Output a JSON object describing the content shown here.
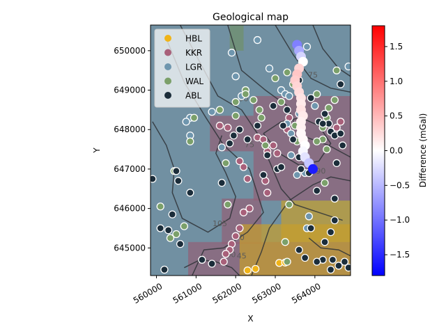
{
  "chart_data": {
    "type": "scatter",
    "title": "Geological map",
    "xlabel": "X",
    "ylabel": "Y",
    "xlim": [
      559850,
      564900
    ],
    "ylim": [
      644300,
      650650
    ],
    "xticks": [
      560000,
      561000,
      562000,
      563000,
      564000
    ],
    "xtick_labels": [
      "560000",
      "561000",
      "562000",
      "563000",
      "564000"
    ],
    "yticks": [
      645000,
      646000,
      647000,
      648000,
      649000,
      650000
    ],
    "ytick_labels": [
      "645000",
      "646000",
      "647000",
      "648000",
      "649000",
      "650000"
    ],
    "grid": false,
    "legend_position": "top-left",
    "legend": [
      {
        "name": "HBL",
        "color": "#f0b418"
      },
      {
        "name": "KKR",
        "color": "#a8607a"
      },
      {
        "name": "LGR",
        "color": "#6f96ae"
      },
      {
        "name": "WAL",
        "color": "#7ba06a"
      },
      {
        "name": "ABL",
        "color": "#1b2d3a"
      }
    ],
    "colorbar": {
      "label": "Difference (mGal)",
      "min": -1.8,
      "max": 1.8,
      "colormap": "bwr",
      "ticks": [
        -1.5,
        -1.0,
        -0.5,
        0.0,
        0.5,
        1.0,
        1.5
      ],
      "tick_labels": [
        "−1.5",
        "−1.0",
        "−0.5",
        "0.0",
        "0.5",
        "1.0",
        "1.5"
      ]
    },
    "contour_labels": [
      {
        "text": "90",
        "x": 562200,
        "y": 648720
      },
      {
        "text": "75",
        "x": 563950,
        "y": 649320
      },
      {
        "text": "75",
        "x": 562350,
        "y": 647550
      },
      {
        "text": "90",
        "x": 564150,
        "y": 646880
      },
      {
        "text": "105",
        "x": 561600,
        "y": 645550
      },
      {
        "text": "90",
        "x": 562100,
        "y": 645200
      },
      {
        "text": "60",
        "x": 561880,
        "y": 644770
      },
      {
        "text": "45",
        "x": 562150,
        "y": 644730
      }
    ],
    "geology_regions": [
      {
        "unit": "LGR",
        "x": [
          559850,
          564900
        ],
        "y": [
          644300,
          650650
        ]
      },
      {
        "unit": "KKR",
        "x": [
          561350,
          562450
        ],
        "y": [
          647450,
          648350
        ]
      },
      {
        "unit": "KKR",
        "x": [
          562450,
          564900
        ],
        "y": [
          646200,
          648850
        ]
      },
      {
        "unit": "KKR",
        "x": [
          561650,
          562650
        ],
        "y": [
          645100,
          646250
        ]
      },
      {
        "unit": "KKR",
        "x": [
          560800,
          564900
        ],
        "y": [
          644300,
          645150
        ]
      },
      {
        "unit": "HBL",
        "x": [
          562100,
          564900
        ],
        "y": [
          644300,
          645600
        ]
      },
      {
        "unit": "HBL",
        "x": [
          563150,
          564900
        ],
        "y": [
          645150,
          646200
        ]
      },
      {
        "unit": "WAL",
        "x": [
          561850,
          562200
        ],
        "y": [
          650000,
          650650
        ]
      }
    ],
    "contours": [
      [
        [
          560250,
          650300
        ],
        [
          560700,
          649200
        ],
        [
          561250,
          648300
        ],
        [
          561700,
          647600
        ],
        [
          562350,
          647000
        ],
        [
          562700,
          645900
        ],
        [
          562300,
          645400
        ],
        [
          561700,
          645000
        ],
        [
          561200,
          644950
        ],
        [
          560900,
          644300
        ]
      ],
      [
        [
          560600,
          650650
        ],
        [
          561100,
          649700
        ],
        [
          561550,
          648850
        ],
        [
          562150,
          648500
        ],
        [
          562550,
          647900
        ],
        [
          562850,
          647200
        ],
        [
          563150,
          646500
        ],
        [
          563500,
          646100
        ],
        [
          564100,
          645900
        ],
        [
          564700,
          645700
        ]
      ],
      [
        [
          561800,
          650650
        ],
        [
          562150,
          649500
        ],
        [
          562750,
          649000
        ],
        [
          563300,
          648600
        ],
        [
          563500,
          648100
        ],
        [
          563800,
          647800
        ],
        [
          564350,
          647600
        ],
        [
          564900,
          647300
        ]
      ],
      [
        [
          563000,
          650650
        ],
        [
          563450,
          649900
        ],
        [
          563900,
          649300
        ],
        [
          564400,
          649050
        ],
        [
          564900,
          648950
        ]
      ],
      [
        [
          563950,
          650650
        ],
        [
          564200,
          650050
        ],
        [
          564600,
          649550
        ],
        [
          564900,
          649350
        ]
      ],
      [
        [
          559900,
          648200
        ],
        [
          560250,
          647600
        ],
        [
          560450,
          647000
        ],
        [
          560400,
          646400
        ],
        [
          560650,
          645750
        ],
        [
          561300,
          645400
        ],
        [
          561850,
          645750
        ],
        [
          562000,
          646300
        ],
        [
          561750,
          646900
        ],
        [
          561500,
          647400
        ],
        [
          561650,
          647850
        ]
      ],
      [
        [
          562400,
          644300
        ],
        [
          562650,
          644900
        ],
        [
          562850,
          645500
        ],
        [
          563350,
          646200
        ],
        [
          563950,
          646600
        ],
        [
          564400,
          646800
        ],
        [
          564900,
          646700
        ]
      ],
      [
        [
          562700,
          647900
        ],
        [
          563100,
          647400
        ],
        [
          563600,
          647100
        ],
        [
          564100,
          647200
        ],
        [
          564400,
          647650
        ],
        [
          564100,
          648100
        ],
        [
          563650,
          648300
        ],
        [
          563150,
          648200
        ],
        [
          562700,
          647900
        ]
      ],
      [
        [
          563850,
          645250
        ],
        [
          564150,
          645000
        ],
        [
          564600,
          644950
        ],
        [
          564900,
          644800
        ]
      ],
      [
        [
          560700,
          644500
        ],
        [
          561100,
          644700
        ],
        [
          561500,
          644650
        ],
        [
          561900,
          644500
        ],
        [
          562100,
          644300
        ]
      ]
    ],
    "gravity_points": [
      {
        "x": 563550,
        "y": 650150,
        "value": -0.9
      },
      {
        "x": 563600,
        "y": 650000,
        "value": -0.6
      },
      {
        "x": 563650,
        "y": 649850,
        "value": -0.3
      },
      {
        "x": 563700,
        "y": 649720,
        "value": 0.0
      },
      {
        "x": 563600,
        "y": 649550,
        "value": 0.3
      },
      {
        "x": 563550,
        "y": 649400,
        "value": 0.4
      },
      {
        "x": 563500,
        "y": 649250,
        "value": 0.35
      },
      {
        "x": 563550,
        "y": 649100,
        "value": 0.3
      },
      {
        "x": 563600,
        "y": 648950,
        "value": 0.25
      },
      {
        "x": 563650,
        "y": 648800,
        "value": 0.2
      },
      {
        "x": 563650,
        "y": 648650,
        "value": 0.15
      },
      {
        "x": 563650,
        "y": 648500,
        "value": 0.2
      },
      {
        "x": 563700,
        "y": 648350,
        "value": 0.15
      },
      {
        "x": 563650,
        "y": 648200,
        "value": 0.1
      },
      {
        "x": 563650,
        "y": 648050,
        "value": 0.1
      },
      {
        "x": 563650,
        "y": 647900,
        "value": 0.05
      },
      {
        "x": 563700,
        "y": 647750,
        "value": 0.05
      },
      {
        "x": 563750,
        "y": 647600,
        "value": 0.0
      },
      {
        "x": 563700,
        "y": 647450,
        "value": -0.05
      },
      {
        "x": 563750,
        "y": 647300,
        "value": -0.2
      },
      {
        "x": 563850,
        "y": 647150,
        "value": -0.4
      },
      {
        "x": 563950,
        "y": 647000,
        "value": -1.6
      }
    ],
    "stations": {
      "HBL": [
        [
          562300,
          644430
        ],
        [
          562500,
          644470
        ],
        [
          563100,
          644620
        ],
        [
          563250,
          644630
        ]
      ],
      "KKR": [
        [
          561600,
          648100
        ],
        [
          561800,
          648050
        ],
        [
          562100,
          647200
        ],
        [
          562200,
          647050
        ],
        [
          562300,
          646750
        ],
        [
          562350,
          646000
        ],
        [
          562200,
          645900
        ],
        [
          562100,
          645500
        ],
        [
          562000,
          645300
        ],
        [
          561900,
          645100
        ],
        [
          561850,
          644950
        ],
        [
          561750,
          644850
        ],
        [
          561700,
          644650
        ],
        [
          562550,
          647800
        ],
        [
          562700,
          647750
        ],
        [
          562800,
          647450
        ],
        [
          562950,
          647600
        ],
        [
          563050,
          647400
        ],
        [
          562750,
          646700
        ],
        [
          562800,
          646400
        ],
        [
          563300,
          648000
        ],
        [
          563350,
          648300
        ],
        [
          564650,
          648200
        ],
        [
          564550,
          648050
        ]
      ],
      "LGR": [
        [
          561900,
          649950
        ],
        [
          562000,
          649350
        ],
        [
          562150,
          648850
        ],
        [
          562550,
          650270
        ],
        [
          562850,
          649550
        ],
        [
          563150,
          649000
        ],
        [
          563250,
          648900
        ],
        [
          563350,
          648850
        ],
        [
          563300,
          648150
        ],
        [
          563400,
          647900
        ],
        [
          563600,
          648400
        ],
        [
          563400,
          647350
        ],
        [
          563550,
          646850
        ],
        [
          563750,
          646900
        ],
        [
          563800,
          645500
        ],
        [
          563850,
          645800
        ],
        [
          563800,
          650100
        ],
        [
          564000,
          648600
        ],
        [
          564850,
          649600
        ],
        [
          560850,
          648300
        ],
        [
          560850,
          647850
        ],
        [
          561400,
          648450
        ],
        [
          561650,
          647550
        ],
        [
          560750,
          648200
        ]
      ],
      "WAL": [
        [
          560100,
          646050
        ],
        [
          560350,
          645250
        ],
        [
          560450,
          646950
        ],
        [
          560500,
          645350
        ],
        [
          560700,
          645550
        ],
        [
          560850,
          647700
        ],
        [
          560950,
          648300
        ],
        [
          561600,
          648500
        ],
        [
          561750,
          647150
        ],
        [
          561800,
          646100
        ],
        [
          562000,
          648350
        ],
        [
          562000,
          648700
        ],
        [
          562250,
          649000
        ],
        [
          562450,
          648750
        ],
        [
          562600,
          648500
        ],
        [
          562650,
          648300
        ],
        [
          562750,
          647600
        ],
        [
          563000,
          649300
        ],
        [
          563150,
          648700
        ],
        [
          563300,
          649450
        ],
        [
          563450,
          649150
        ],
        [
          563500,
          648100
        ],
        [
          563550,
          647700
        ],
        [
          564050,
          648900
        ],
        [
          564200,
          648050
        ],
        [
          564300,
          648300
        ],
        [
          564350,
          648550
        ],
        [
          564500,
          648750
        ],
        [
          564550,
          649500
        ],
        [
          564200,
          647750
        ],
        [
          564250,
          646650
        ],
        [
          563350,
          646100
        ],
        [
          563250,
          645150
        ],
        [
          563300,
          644650
        ],
        [
          562250,
          648900
        ],
        [
          564050,
          647700
        ],
        [
          564300,
          647500
        ]
      ],
      "ABL": [
        [
          559900,
          646750
        ],
        [
          560100,
          645500
        ],
        [
          560200,
          644450
        ],
        [
          560300,
          645450
        ],
        [
          560400,
          645850
        ],
        [
          560500,
          646950
        ],
        [
          560550,
          646700
        ],
        [
          560600,
          645100
        ],
        [
          560850,
          646400
        ],
        [
          561150,
          644700
        ],
        [
          561400,
          644600
        ],
        [
          561650,
          646650
        ],
        [
          561850,
          647650
        ],
        [
          561950,
          647850
        ],
        [
          562100,
          648000
        ],
        [
          562300,
          647750
        ],
        [
          562550,
          648100
        ],
        [
          562700,
          646850
        ],
        [
          562800,
          647350
        ],
        [
          562950,
          648600
        ],
        [
          563050,
          647000
        ],
        [
          563150,
          647050
        ],
        [
          563200,
          648100
        ],
        [
          563300,
          648500
        ],
        [
          563450,
          647750
        ],
        [
          563600,
          647300
        ],
        [
          563650,
          647000
        ],
        [
          563850,
          646900
        ],
        [
          563900,
          645500
        ],
        [
          564050,
          646450
        ],
        [
          564100,
          648200
        ],
        [
          564250,
          648400
        ],
        [
          564350,
          648150
        ],
        [
          564400,
          647950
        ],
        [
          564500,
          647850
        ],
        [
          564650,
          647900
        ],
        [
          564700,
          647600
        ],
        [
          564550,
          647150
        ],
        [
          564500,
          646250
        ],
        [
          564400,
          645400
        ],
        [
          564500,
          645700
        ],
        [
          564250,
          645150
        ],
        [
          564200,
          644700
        ],
        [
          564450,
          644700
        ],
        [
          564600,
          644550
        ],
        [
          564750,
          644650
        ],
        [
          564850,
          644500
        ],
        [
          564400,
          644450
        ],
        [
          564050,
          644650
        ],
        [
          563750,
          644750
        ],
        [
          563600,
          644950
        ],
        [
          564650,
          649150
        ],
        [
          564200,
          648150
        ],
        [
          563600,
          649250
        ],
        [
          563900,
          648800
        ]
      ]
    }
  }
}
